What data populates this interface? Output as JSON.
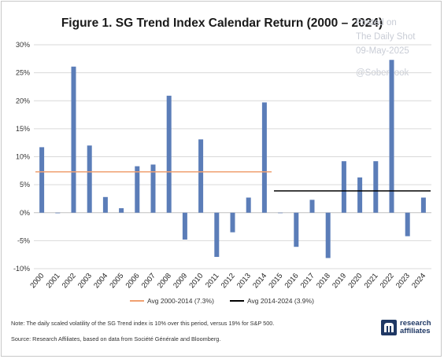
{
  "title": "Figure 1. SG Trend Index Calendar Return (2000 – 2024)",
  "watermark": {
    "line1": "Posted on",
    "line2": "The Daily Shot",
    "line3": "09-May-2025",
    "line4": "@SoberLook"
  },
  "legend": {
    "avg1_label": "Avg 2000-2014 (7.3%)",
    "avg2_label": "Avg 2014-2024 (3.9%)"
  },
  "notes": {
    "note": "Note: The daily scaled volatility of the SG Trend index is 10% over this period, versus 19% for S&P 500.",
    "source": "Source: Research Affiliates, based on data from Société Générale and Bloomberg."
  },
  "logo": {
    "line1": "research",
    "line2": "affiliates"
  },
  "colors": {
    "bar": "#5b7db8",
    "avg1": "#f0a070",
    "avg2": "#000000",
    "grid": "#d9d9d9"
  },
  "chart_data": {
    "type": "bar",
    "title": "Figure 1. SG Trend Index Calendar Return (2000 – 2024)",
    "categories": [
      "2000",
      "2001",
      "2002",
      "2003",
      "2004",
      "2005",
      "2006",
      "2007",
      "2008",
      "2009",
      "2010",
      "2011",
      "2012",
      "2013",
      "2014",
      "2015",
      "2016",
      "2017",
      "2018",
      "2019",
      "2020",
      "2021",
      "2022",
      "2023",
      "2024"
    ],
    "series": [
      {
        "values": [
          11.7,
          -0.1,
          26.1,
          12.0,
          2.8,
          0.8,
          8.3,
          8.6,
          20.9,
          -4.8,
          13.1,
          -7.9,
          -3.5,
          2.7,
          19.7,
          0.0,
          -6.1,
          2.3,
          -8.1,
          9.2,
          6.3,
          9.2,
          27.3,
          -4.2,
          2.7
        ]
      }
    ],
    "averages": [
      {
        "label": "Avg 2000-2014 (7.3%)",
        "value": 7.3,
        "from": "2000",
        "to": "2014"
      },
      {
        "label": "Avg 2014-2024 (3.9%)",
        "value": 3.9,
        "from": "2015",
        "to": "2024"
      }
    ],
    "ylim": [
      -10,
      30
    ],
    "yticks": [
      -10,
      -5,
      0,
      5,
      10,
      15,
      20,
      25,
      30
    ],
    "ytick_labels": [
      "-10%",
      "-5%",
      "0%",
      "5%",
      "10%",
      "15%",
      "20%",
      "25%",
      "30%"
    ],
    "grid": true,
    "legend_position": "bottom"
  }
}
